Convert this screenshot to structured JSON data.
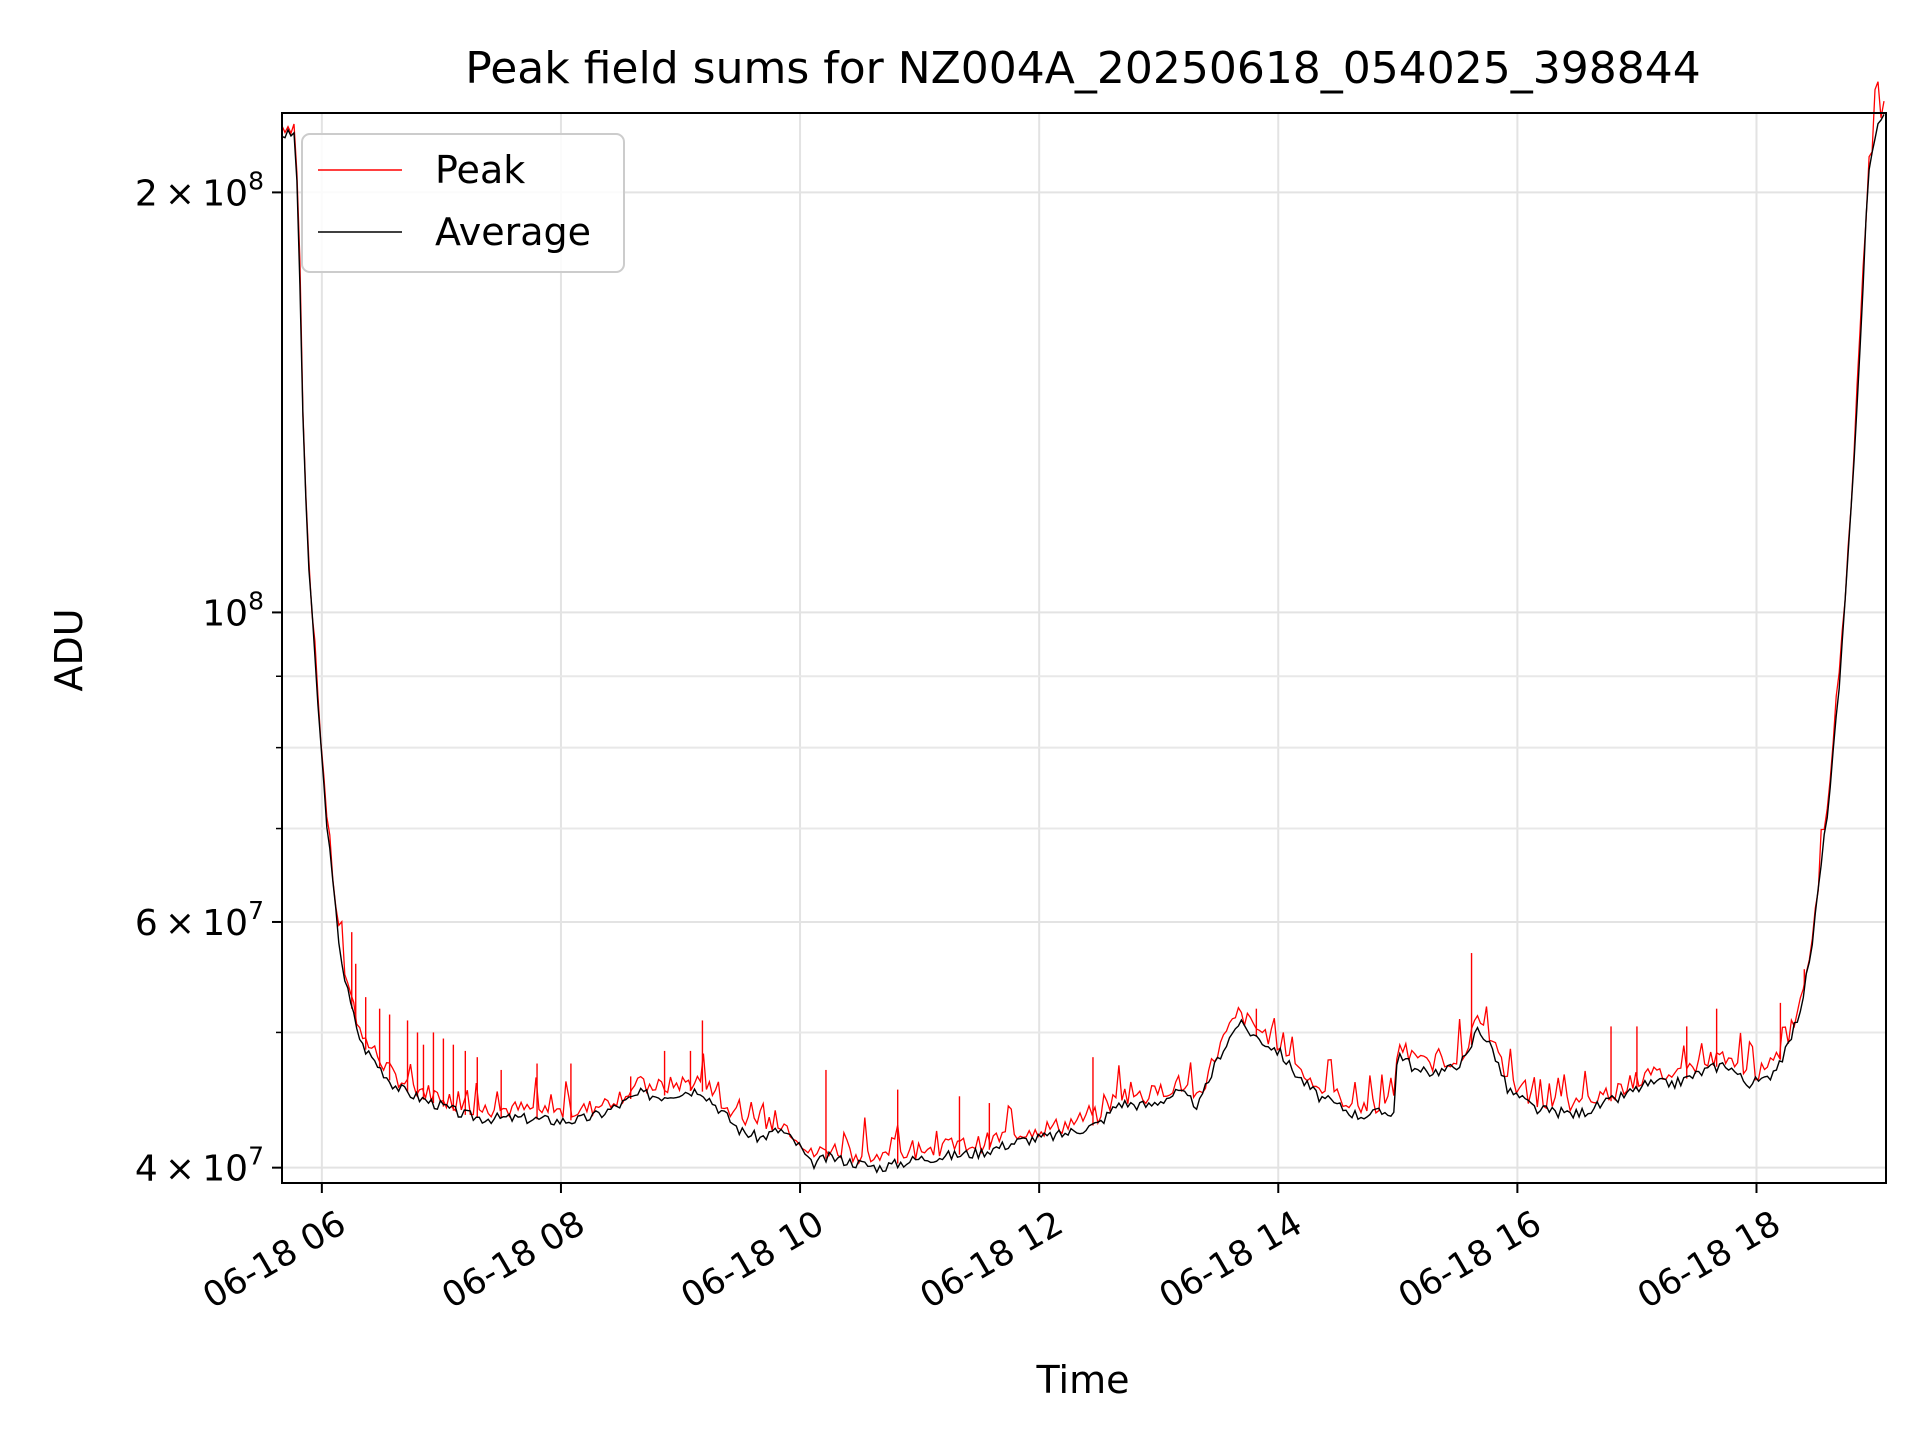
{
  "chart_data": {
    "type": "line",
    "title": "Peak field sums for NZ004A_20250618_054025_398844",
    "xlabel": "Time",
    "ylabel": "ADU",
    "y_scale": "log",
    "ylim": [
      39000000,
      228000000
    ],
    "x_range": [
      "2025-06-18 05:40",
      "2025-06-18 19:05"
    ],
    "grid": true,
    "legend_position": "upper-left",
    "x_ticks": [
      {
        "value": "2025-06-18 06:00",
        "label": "06-18 06"
      },
      {
        "value": "2025-06-18 08:00",
        "label": "06-18 08"
      },
      {
        "value": "2025-06-18 10:00",
        "label": "06-18 10"
      },
      {
        "value": "2025-06-18 12:00",
        "label": "06-18 12"
      },
      {
        "value": "2025-06-18 14:00",
        "label": "06-18 14"
      },
      {
        "value": "2025-06-18 16:00",
        "label": "06-18 16"
      },
      {
        "value": "2025-06-18 18:00",
        "label": "06-18 18"
      }
    ],
    "y_ticks": [
      {
        "value": 40000000,
        "mantissa": "4",
        "exp": "7"
      },
      {
        "value": 60000000,
        "mantissa": "6",
        "exp": "7"
      },
      {
        "value": 100000000,
        "mantissa": "",
        "exp": "8"
      },
      {
        "value": 200000000,
        "mantissa": "2",
        "exp": "8"
      }
    ],
    "y_minor_ticks": [
      50000000,
      70000000,
      80000000,
      90000000
    ],
    "series": [
      {
        "name": "Peak",
        "color": "#ff0000",
        "spikes": [
          {
            "x": "2025-06-18 06:15",
            "y": 59000000
          },
          {
            "x": "2025-06-18 06:17",
            "y": 56000000
          },
          {
            "x": "2025-06-18 06:22",
            "y": 53000000
          },
          {
            "x": "2025-06-18 06:29",
            "y": 52000000
          },
          {
            "x": "2025-06-18 06:34",
            "y": 51500000
          },
          {
            "x": "2025-06-18 06:43",
            "y": 51000000
          },
          {
            "x": "2025-06-18 06:48",
            "y": 50000000
          },
          {
            "x": "2025-06-18 06:51",
            "y": 49000000
          },
          {
            "x": "2025-06-18 06:56",
            "y": 50000000
          },
          {
            "x": "2025-06-18 07:01",
            "y": 49500000
          },
          {
            "x": "2025-06-18 07:06",
            "y": 49000000
          },
          {
            "x": "2025-06-18 07:12",
            "y": 48500000
          },
          {
            "x": "2025-06-18 07:18",
            "y": 48000000
          },
          {
            "x": "2025-06-18 07:30",
            "y": 47000000
          },
          {
            "x": "2025-06-18 07:48",
            "y": 47500000
          },
          {
            "x": "2025-06-18 08:05",
            "y": 47500000
          },
          {
            "x": "2025-06-18 08:35",
            "y": 46500000
          },
          {
            "x": "2025-06-18 08:52",
            "y": 48500000
          },
          {
            "x": "2025-06-18 09:05",
            "y": 48500000
          },
          {
            "x": "2025-06-18 09:11",
            "y": 51000000
          },
          {
            "x": "2025-06-18 10:13",
            "y": 47000000
          },
          {
            "x": "2025-06-18 10:49",
            "y": 45500000
          },
          {
            "x": "2025-06-18 11:20",
            "y": 45000000
          },
          {
            "x": "2025-06-18 11:35",
            "y": 44500000
          },
          {
            "x": "2025-06-18 12:27",
            "y": 48000000
          },
          {
            "x": "2025-06-18 13:49",
            "y": 52000000
          },
          {
            "x": "2025-06-18 15:37",
            "y": 57000000
          },
          {
            "x": "2025-06-18 16:47",
            "y": 50500000
          },
          {
            "x": "2025-06-18 17:00",
            "y": 50500000
          },
          {
            "x": "2025-06-18 17:25",
            "y": 50500000
          },
          {
            "x": "2025-06-18 17:40",
            "y": 52000000
          },
          {
            "x": "2025-06-18 18:12",
            "y": 52500000
          },
          {
            "x": "2025-06-18 18:24",
            "y": 55500000
          }
        ]
      },
      {
        "name": "Average",
        "color": "#000000",
        "points": [
          [
            "2025-06-18 05:40",
            220000000
          ],
          [
            "2025-06-18 05:46",
            220000000
          ],
          [
            "2025-06-18 05:48",
            200000000
          ],
          [
            "2025-06-18 05:50",
            145000000
          ],
          [
            "2025-06-18 05:53",
            110000000
          ],
          [
            "2025-06-18 05:56",
            95000000
          ],
          [
            "2025-06-18 05:59",
            82000000
          ],
          [
            "2025-06-18 06:02",
            72000000
          ],
          [
            "2025-06-18 06:05",
            65000000
          ],
          [
            "2025-06-18 06:08",
            59000000
          ],
          [
            "2025-06-18 06:11",
            55000000
          ],
          [
            "2025-06-18 06:15",
            52000000
          ],
          [
            "2025-06-18 06:20",
            49000000
          ],
          [
            "2025-06-18 06:25",
            48000000
          ],
          [
            "2025-06-18 06:30",
            47000000
          ],
          [
            "2025-06-18 06:35",
            46000000
          ],
          [
            "2025-06-18 06:40",
            45500000
          ],
          [
            "2025-06-18 06:50",
            44800000
          ],
          [
            "2025-06-18 07:00",
            44300000
          ],
          [
            "2025-06-18 07:10",
            43700000
          ],
          [
            "2025-06-18 07:20",
            43400000
          ],
          [
            "2025-06-18 07:40",
            43400000
          ],
          [
            "2025-06-18 08:00",
            43200000
          ],
          [
            "2025-06-18 08:10",
            43300000
          ],
          [
            "2025-06-18 08:20",
            43700000
          ],
          [
            "2025-06-18 08:30",
            44400000
          ],
          [
            "2025-06-18 08:40",
            45200000
          ],
          [
            "2025-06-18 08:50",
            45000000
          ],
          [
            "2025-06-18 09:00",
            45300000
          ],
          [
            "2025-06-18 09:10",
            45500000
          ],
          [
            "2025-06-18 09:20",
            44000000
          ],
          [
            "2025-06-18 09:30",
            42500000
          ],
          [
            "2025-06-18 09:40",
            42000000
          ],
          [
            "2025-06-18 09:50",
            42600000
          ],
          [
            "2025-06-18 10:00",
            41400000
          ],
          [
            "2025-06-18 10:05",
            40200000
          ],
          [
            "2025-06-18 10:15",
            40700000
          ],
          [
            "2025-06-18 10:25",
            40400000
          ],
          [
            "2025-06-18 10:40",
            40000000
          ],
          [
            "2025-06-18 11:00",
            40600000
          ],
          [
            "2025-06-18 11:30",
            41000000
          ],
          [
            "2025-06-18 11:50",
            41800000
          ],
          [
            "2025-06-18 12:10",
            42200000
          ],
          [
            "2025-06-18 12:30",
            43000000
          ],
          [
            "2025-06-18 12:40",
            44500000
          ],
          [
            "2025-06-18 12:55",
            44300000
          ],
          [
            "2025-06-18 13:10",
            45300000
          ],
          [
            "2025-06-18 13:20",
            44300000
          ],
          [
            "2025-06-18 13:30",
            48000000
          ],
          [
            "2025-06-18 13:40",
            50800000
          ],
          [
            "2025-06-18 13:50",
            49500000
          ],
          [
            "2025-06-18 14:00",
            48500000
          ],
          [
            "2025-06-18 14:10",
            46500000
          ],
          [
            "2025-06-18 14:20",
            45000000
          ],
          [
            "2025-06-18 14:40",
            43600000
          ],
          [
            "2025-06-18 14:58",
            43900000
          ],
          [
            "2025-06-18 15:00",
            48500000
          ],
          [
            "2025-06-18 15:10",
            46800000
          ],
          [
            "2025-06-18 15:25",
            47000000
          ],
          [
            "2025-06-18 15:35",
            48000000
          ],
          [
            "2025-06-18 15:40",
            50500000
          ],
          [
            "2025-06-18 15:48",
            48500000
          ],
          [
            "2025-06-18 15:55",
            45500000
          ],
          [
            "2025-06-18 16:10",
            44000000
          ],
          [
            "2025-06-18 16:30",
            43700000
          ],
          [
            "2025-06-18 16:50",
            44800000
          ],
          [
            "2025-06-18 17:05",
            45900000
          ],
          [
            "2025-06-18 17:20",
            46000000
          ],
          [
            "2025-06-18 17:35",
            47000000
          ],
          [
            "2025-06-18 17:45",
            47500000
          ],
          [
            "2025-06-18 17:55",
            46000000
          ],
          [
            "2025-06-18 18:05",
            46200000
          ],
          [
            "2025-06-18 18:15",
            48500000
          ],
          [
            "2025-06-18 18:22",
            52000000
          ],
          [
            "2025-06-18 18:27",
            56500000
          ],
          [
            "2025-06-18 18:32",
            65000000
          ],
          [
            "2025-06-18 18:37",
            75000000
          ],
          [
            "2025-06-18 18:42",
            90000000
          ],
          [
            "2025-06-18 18:47",
            115000000
          ],
          [
            "2025-06-18 18:52",
            155000000
          ],
          [
            "2025-06-18 18:56",
            205000000
          ],
          [
            "2025-06-18 19:00",
            222000000
          ],
          [
            "2025-06-18 19:05",
            228000000
          ]
        ]
      }
    ]
  }
}
